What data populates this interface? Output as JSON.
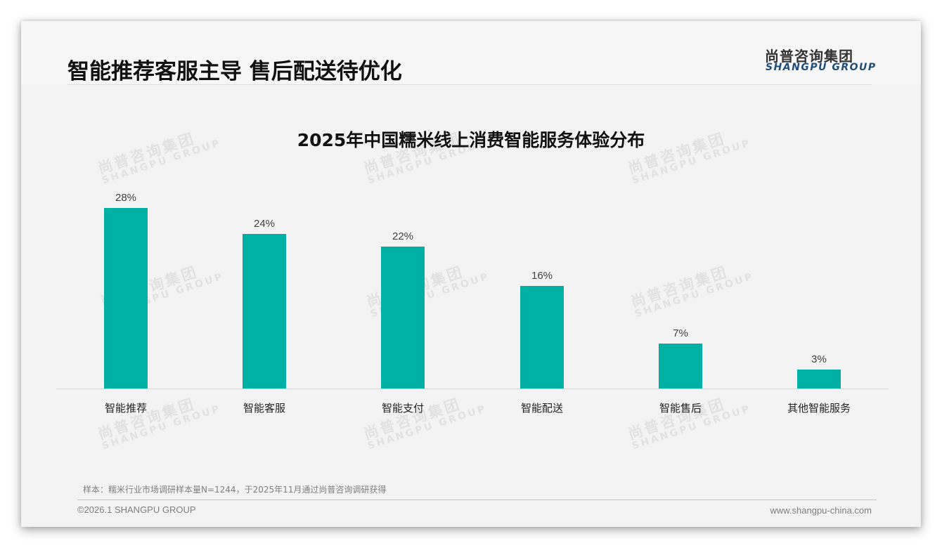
{
  "header": {
    "title": "智能推荐客服主导 售后配送待优化",
    "logo_cn": "尚普咨询集团",
    "logo_en": "SHANGPU GROUP"
  },
  "watermark": {
    "cn": "尚普咨询集团",
    "en": "SHANGPU GROUP"
  },
  "colors": {
    "bar": "#00b0a5",
    "logo_en": "#1f4e79",
    "background": "#f3f3f3"
  },
  "chart_data": {
    "type": "bar",
    "title": "2025年中国糯米线上消费智能服务体验分布",
    "xlabel": "",
    "ylabel": "",
    "ylim": [
      0,
      30
    ],
    "grid": false,
    "legend": null,
    "categories": [
      "智能推荐",
      "智能客服",
      "智能支付",
      "智能配送",
      "智能售后",
      "其他智能服务"
    ],
    "values": [
      28,
      24,
      22,
      16,
      7,
      3
    ],
    "value_labels": [
      "28%",
      "24%",
      "22%",
      "16%",
      "7%",
      "3%"
    ],
    "unit": "%"
  },
  "footer": {
    "sample_note": "样本：糯米行业市场调研样本量N=1244，于2025年11月通过尚普咨询调研获得",
    "copyright": "©2026.1 SHANGPU GROUP",
    "website": "www.shangpu-china.com"
  }
}
